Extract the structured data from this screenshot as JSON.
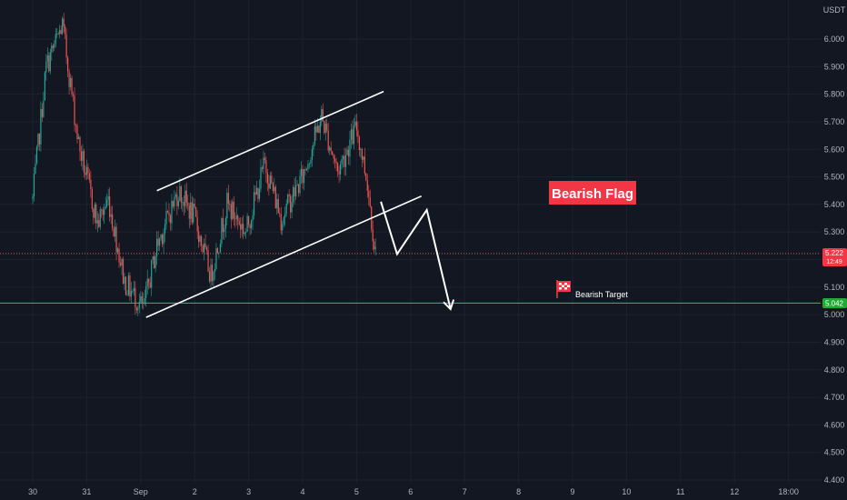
{
  "instrument": {
    "quote_currency": "USDT"
  },
  "colors": {
    "background": "#131722",
    "grid": "#1e222d",
    "candle_up": "#26a69a",
    "candle_down": "#ef5350",
    "pattern_lines": "#ffffff",
    "current_price_line": "#ef5350",
    "target_line": "#26c948",
    "label_red": "#f23645",
    "label_green": "#22ab34"
  },
  "price_labels": {
    "current_price": "5.222",
    "countdown": "12:49",
    "target_price": "5.042"
  },
  "annotations": {
    "pattern_label": "Bearish Flag",
    "target_label": "Bearish Target"
  },
  "chart_data": {
    "type": "candlestick",
    "title": "",
    "y_unit": "USDT",
    "ylim": [
      4.4,
      6.1
    ],
    "y_ticks": [
      "6.000",
      "5.900",
      "5.800",
      "5.700",
      "5.600",
      "5.500",
      "5.400",
      "5.300",
      "5.200",
      "5.100",
      "5.000",
      "4.900",
      "4.800",
      "4.700",
      "4.600",
      "4.500",
      "4.400"
    ],
    "x_ticks": [
      "30",
      "31",
      "Sep",
      "2",
      "3",
      "4",
      "5",
      "6",
      "7",
      "8",
      "9",
      "10",
      "11",
      "12",
      "18:00"
    ],
    "grid": true,
    "price_path": [
      {
        "x": 0.0,
        "price": 5.42
      },
      {
        "x": 0.25,
        "price": 5.9
      },
      {
        "x": 0.55,
        "price": 6.05
      },
      {
        "x": 0.85,
        "price": 5.62
      },
      {
        "x": 1.2,
        "price": 5.33
      },
      {
        "x": 1.4,
        "price": 5.42
      },
      {
        "x": 1.7,
        "price": 5.12
      },
      {
        "x": 2.05,
        "price": 5.02
      },
      {
        "x": 2.3,
        "price": 5.25
      },
      {
        "x": 2.7,
        "price": 5.45
      },
      {
        "x": 3.0,
        "price": 5.35
      },
      {
        "x": 3.3,
        "price": 5.14
      },
      {
        "x": 3.6,
        "price": 5.4
      },
      {
        "x": 3.95,
        "price": 5.3
      },
      {
        "x": 4.3,
        "price": 5.55
      },
      {
        "x": 4.6,
        "price": 5.35
      },
      {
        "x": 5.0,
        "price": 5.5
      },
      {
        "x": 5.35,
        "price": 5.72
      },
      {
        "x": 5.65,
        "price": 5.52
      },
      {
        "x": 6.0,
        "price": 5.68
      },
      {
        "x": 6.2,
        "price": 5.48
      },
      {
        "x": 6.35,
        "price": 5.22
      }
    ],
    "flag_upper_line": [
      {
        "x": 2.3,
        "price": 5.45
      },
      {
        "x": 6.5,
        "price": 5.81
      }
    ],
    "flag_lower_line": [
      {
        "x": 2.1,
        "price": 4.99
      },
      {
        "x": 7.2,
        "price": 5.43
      }
    ],
    "projection_path": [
      {
        "x": 6.45,
        "price": 5.41
      },
      {
        "x": 6.75,
        "price": 5.22
      },
      {
        "x": 7.3,
        "price": 5.38
      },
      {
        "x": 7.74,
        "price": 5.02
      }
    ],
    "current_price": 5.222,
    "target_price": 5.042
  }
}
